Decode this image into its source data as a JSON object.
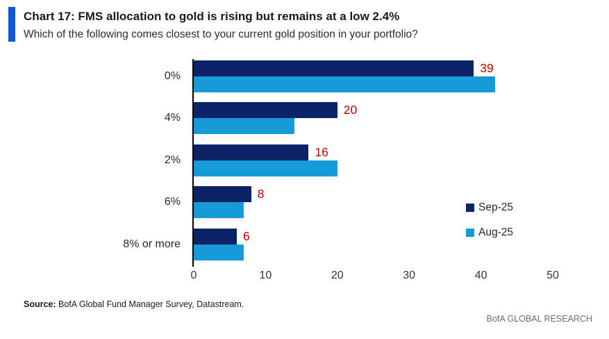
{
  "header": {
    "title": "Chart 17: FMS allocation to gold is rising but remains at a low 2.4%",
    "subtitle": "Which of the following comes closest to your current gold position in your portfolio?"
  },
  "chart_data": {
    "type": "bar",
    "orientation": "horizontal",
    "categories": [
      "0%",
      "4%",
      "2%",
      "6%",
      "8% or more"
    ],
    "series": [
      {
        "name": "Sep-25",
        "color": "#0b2265",
        "values": [
          39,
          20,
          16,
          8,
          6
        ],
        "value_labels_shown": true
      },
      {
        "name": "Aug-25",
        "color": "#169bd7",
        "values": [
          42,
          14,
          20,
          7,
          7
        ],
        "value_labels_shown": false
      }
    ],
    "value_label_color": "#c00000",
    "xlim": [
      0,
      50
    ],
    "x_ticks": [
      0,
      10,
      20,
      30,
      40,
      50
    ],
    "grid": false,
    "legend_position": "right-middle"
  },
  "colors": {
    "accent_bar": "#1158d6",
    "axis_line": "#000000"
  },
  "footer": {
    "source_label": "Source:",
    "source_text": " BofA Global Fund Manager Survey, Datastream.",
    "branding": "BofA GLOBAL RESEARCH"
  }
}
